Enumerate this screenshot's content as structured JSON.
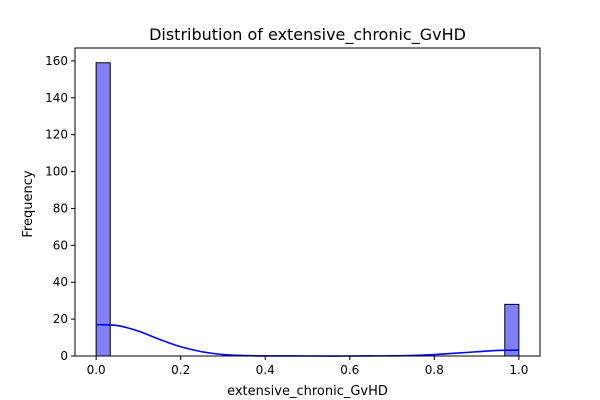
{
  "chart_data": {
    "type": "bar",
    "title": "Distribution of extensive_chronic_GvHD",
    "xlabel": "extensive_chronic_GvHD",
    "ylabel": "Frequency",
    "xlim": [
      -0.05,
      1.05
    ],
    "ylim": [
      0,
      167
    ],
    "xticks": [
      "0.0",
      "0.2",
      "0.4",
      "0.6",
      "0.8",
      "1.0"
    ],
    "yticks": [
      "0",
      "20",
      "40",
      "60",
      "80",
      "100",
      "120",
      "140",
      "160"
    ],
    "bars": [
      {
        "x0": 0.0,
        "x1": 0.0333,
        "count": 159
      },
      {
        "x0": 0.9667,
        "x1": 1.0,
        "count": 28
      }
    ],
    "kde": {
      "name": "",
      "x": [
        0.0,
        0.05,
        0.1,
        0.15,
        0.2,
        0.25,
        0.3,
        0.35,
        0.4,
        0.5,
        0.6,
        0.7,
        0.75,
        0.8,
        0.85,
        0.9,
        0.95,
        1.0
      ],
      "y": [
        17,
        16.5,
        13.5,
        9,
        5,
        2.3,
        0.8,
        0.25,
        0.05,
        0.0,
        0.0,
        0.1,
        0.3,
        0.8,
        1.5,
        2.3,
        3.0,
        3.2
      ]
    },
    "colors": {
      "bar_fill": "#8080f8",
      "bar_edge": "#000000",
      "kde_line": "#0000ff"
    },
    "grid": false,
    "legend": "none"
  }
}
